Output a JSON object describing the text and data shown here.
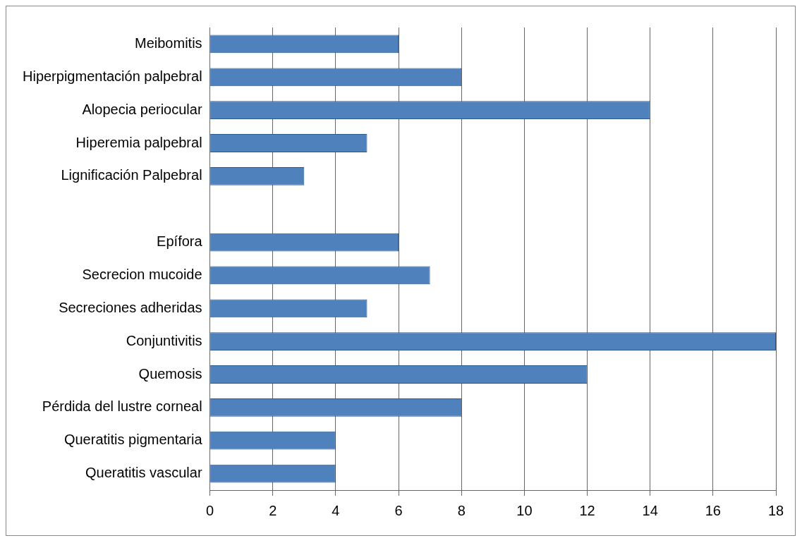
{
  "chart_data": {
    "type": "bar",
    "orientation": "horizontal",
    "categories": [
      "Meibomitis",
      "Hiperpigmentación palpebral",
      "Alopecia periocular",
      "Hiperemia palpebral",
      "Lignificación Palpebral",
      null,
      "Epífora",
      "Secrecion mucoide",
      "Secreciones adheridas",
      "Conjuntivitis",
      "Quemosis",
      "Pérdida del lustre corneal",
      "Queratitis pigmentaria",
      "Queratitis vascular"
    ],
    "values": [
      6,
      8,
      14,
      5,
      3,
      null,
      6,
      7,
      5,
      18,
      12,
      8,
      4,
      4
    ],
    "color": "#4f81bd",
    "xlim": [
      0,
      18
    ],
    "xticks": [
      0,
      2,
      4,
      6,
      8,
      10,
      12,
      14,
      16,
      18
    ],
    "grid": "x",
    "legend": false
  }
}
